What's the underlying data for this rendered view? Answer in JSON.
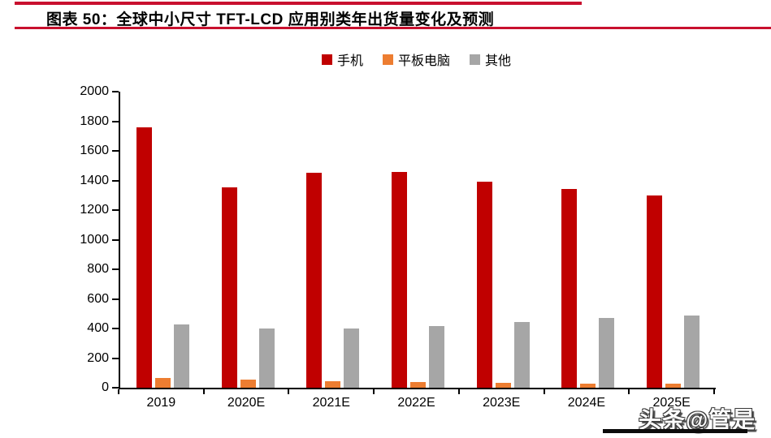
{
  "header": {
    "title": "图表 50：全球中小尺寸 TFT-LCD 应用别类年出货量变化及预测"
  },
  "colors": {
    "accent_rule": "#C8102E",
    "mobile": "#C00000",
    "tablet": "#ED7D31",
    "other": "#A6A6A6",
    "axis": "#000000"
  },
  "watermark": {
    "text": "头条@管是"
  },
  "chart_data": {
    "type": "bar",
    "title": "全球中小尺寸 TFT-LCD 应用别类年出货量变化及预测",
    "categories": [
      "2019",
      "2020E",
      "2021E",
      "2022E",
      "2023E",
      "2024E",
      "2025E"
    ],
    "series": [
      {
        "key": "mobile",
        "name": "手机",
        "color": "#C00000",
        "values": [
          1760,
          1355,
          1450,
          1460,
          1390,
          1340,
          1300
        ]
      },
      {
        "key": "tablet",
        "name": "平板电脑",
        "color": "#ED7D31",
        "values": [
          65,
          55,
          45,
          40,
          35,
          30,
          30
        ]
      },
      {
        "key": "other",
        "name": "其他",
        "color": "#A6A6A6",
        "values": [
          425,
          400,
          400,
          415,
          445,
          470,
          490
        ]
      }
    ],
    "xlabel": "",
    "ylabel": "",
    "ylim": [
      0,
      2000
    ],
    "ytick_step": 200,
    "grid": false,
    "legend_position": "top-center"
  }
}
